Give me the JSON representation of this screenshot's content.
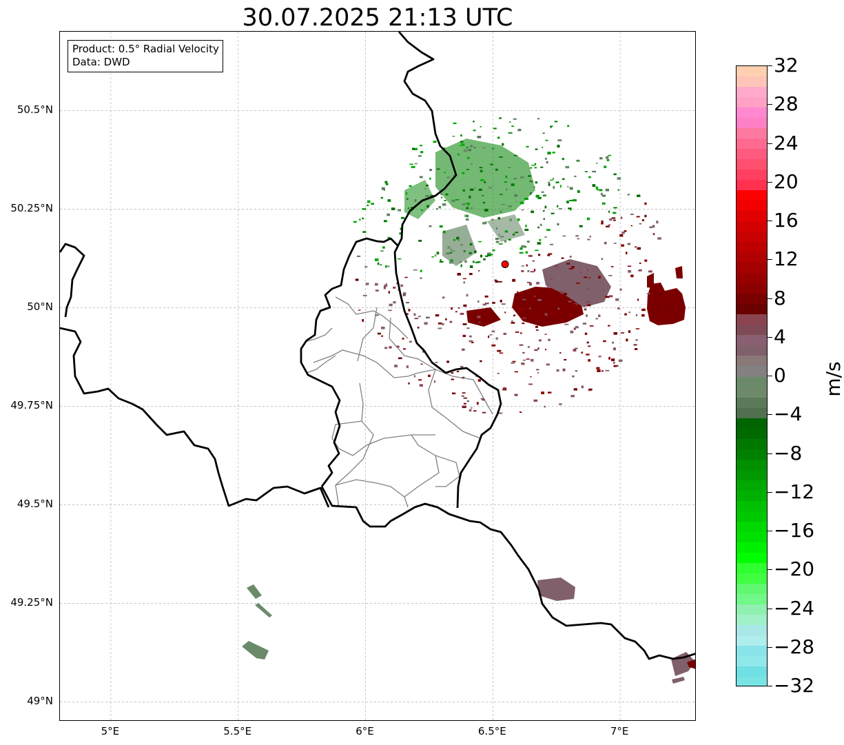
{
  "title": "30.07.2025 21:13 UTC",
  "info_box": {
    "product": "Product: 0.5° Radial Velocity",
    "data": "Data: DWD"
  },
  "map": {
    "lon_ticks": [
      {
        "value": 5.0,
        "label": "5°E"
      },
      {
        "value": 5.5,
        "label": "5.5°E"
      },
      {
        "value": 6.0,
        "label": "6°E"
      },
      {
        "value": 6.5,
        "label": "6.5°E"
      },
      {
        "value": 7.0,
        "label": "7°E"
      }
    ],
    "lat_ticks": [
      {
        "value": 50.5,
        "label": "50.5°N"
      },
      {
        "value": 50.25,
        "label": "50.25°N"
      },
      {
        "value": 50.0,
        "label": "50°N"
      },
      {
        "value": 49.75,
        "label": "49.75°N"
      },
      {
        "value": 49.5,
        "label": "49.5°N"
      },
      {
        "value": 49.25,
        "label": "49.25°N"
      },
      {
        "value": 49.0,
        "label": "49°N"
      }
    ],
    "extent": {
      "lon_min": 4.8,
      "lon_max": 7.3,
      "lat_min": 48.95,
      "lat_max": 50.7
    },
    "radar_site": {
      "lon": 6.548,
      "lat": 50.11,
      "color": "#ff0000"
    },
    "border_color": "#000000",
    "canton_color": "#808080",
    "grid": true
  },
  "colorbar": {
    "unit": "m/s",
    "min": -32,
    "max": 32,
    "tick_labels": [
      "32",
      "28",
      "24",
      "20",
      "16",
      "12",
      "8",
      "4",
      "0",
      "−4",
      "−8",
      "−12",
      "−16",
      "−20",
      "−24",
      "−28",
      "−32"
    ],
    "tick_values": [
      32,
      28,
      24,
      20,
      16,
      12,
      8,
      4,
      0,
      -4,
      -8,
      -12,
      -16,
      -20,
      -24,
      -28,
      -32
    ],
    "bands_top_to_bottom": [
      "#ffd0b0",
      "#ffc4b8",
      "#ffaac8",
      "#ffa0c4",
      "#ff88d0",
      "#ff80c4",
      "#ff78a0",
      "#ff6a90",
      "#ff5a80",
      "#ff5070",
      "#ff4060",
      "#ff3050",
      "#ff0000",
      "#f00000",
      "#e00000",
      "#d40000",
      "#c80000",
      "#bc0000",
      "#b00000",
      "#a40000",
      "#980000",
      "#8c0000",
      "#7a0000",
      "#6a0000",
      "#8a4450",
      "#7e4a55",
      "#8a6070",
      "#80606a",
      "#8a7878",
      "#828080",
      "#6a8a6a",
      "#6e8a6a",
      "#5a7a5a",
      "#507050",
      "#006400",
      "#006a00",
      "#007800",
      "#008000",
      "#009000",
      "#009800",
      "#00a800",
      "#00b000",
      "#00c000",
      "#00c800",
      "#00d800",
      "#00e000",
      "#00f000",
      "#00ff00",
      "#30ff30",
      "#40ff40",
      "#60f870",
      "#70f888",
      "#90f0b0",
      "#a0f0c8",
      "#a8e8e8",
      "#b0eeee",
      "#88e4e8",
      "#90e8ea",
      "#70e0e4",
      "#78e4e6"
    ]
  }
}
